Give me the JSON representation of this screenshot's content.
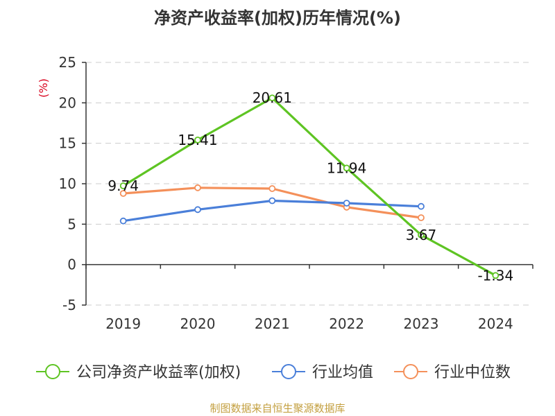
{
  "chart_data": {
    "type": "line",
    "title": "净资产收益率(加权)历年情况(%)",
    "ylabel": "(%)",
    "categories": [
      "2019",
      "2020",
      "2021",
      "2022",
      "2023",
      "2024"
    ],
    "ylim": [
      -5,
      25
    ],
    "yticks": [
      25,
      20,
      15,
      10,
      5,
      0,
      -5
    ],
    "grid": true,
    "legend_position": "bottom",
    "series": [
      {
        "name": "公司净资产收益率(加权)",
        "color": "#5ec423",
        "values": [
          9.74,
          15.41,
          20.61,
          11.94,
          3.67,
          -1.34
        ],
        "labels": [
          "9.74",
          "15.41",
          "20.61",
          "11.94",
          "3.67",
          "-1.34"
        ]
      },
      {
        "name": "行业均值",
        "color": "#4a7fd9",
        "values": [
          5.4,
          6.8,
          7.9,
          7.6,
          7.2,
          null
        ]
      },
      {
        "name": "行业中位数",
        "color": "#f4905a",
        "values": [
          8.8,
          9.5,
          9.4,
          7.1,
          5.8,
          null
        ]
      }
    ]
  },
  "source_note": "制图数据来自恒生聚源数据库"
}
